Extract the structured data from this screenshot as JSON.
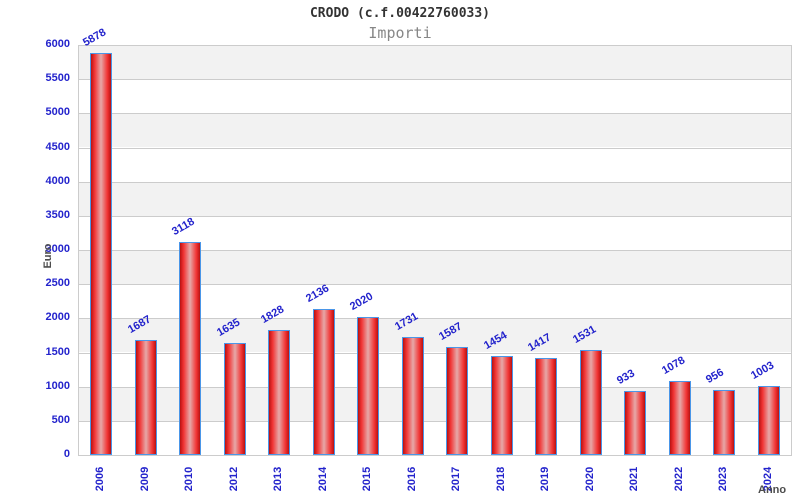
{
  "title": "CRODO (c.f.00422760033)",
  "subtitle": "Importi",
  "chart_data": {
    "type": "bar",
    "categories": [
      "2006",
      "2009",
      "2010",
      "2012",
      "2013",
      "2014",
      "2015",
      "2016",
      "2017",
      "2018",
      "2019",
      "2020",
      "2021",
      "2022",
      "2023",
      "2024"
    ],
    "values": [
      5878,
      1687,
      3118,
      1635,
      1828,
      2136,
      2020,
      1731,
      1587,
      1454,
      1417,
      1531,
      933,
      1078,
      956,
      1003
    ],
    "title": "CRODO (c.f.00422760033)",
    "subtitle": "Importi",
    "xlabel": "Anno",
    "ylabel": "Euro",
    "ylim": [
      0,
      6000
    ],
    "ytick_step": 500,
    "yticks": [
      0,
      500,
      1000,
      1500,
      2000,
      2500,
      3000,
      3500,
      4000,
      4500,
      5000,
      5500,
      6000
    ],
    "grid": true,
    "legend": "none",
    "colors": {
      "bar_fill_dark": "#b91111",
      "bar_fill_bright": "#f13434",
      "bar_fill_center": "#e6a8a8",
      "bar_border": "#4a96e8",
      "label_blue": "#2323cc",
      "grid_line": "#cccccc",
      "band_gray": "#f2f2f2",
      "band_white": "#ffffff",
      "title_color": "#333333",
      "subtitle_color": "#878787",
      "axis_title_color": "#4d4d4d"
    }
  }
}
